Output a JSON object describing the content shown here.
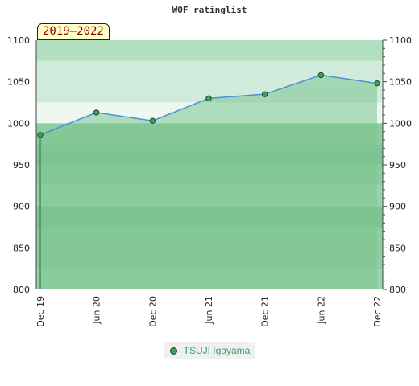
{
  "chart_data": {
    "type": "area",
    "title": "WOF ratinglist",
    "period_label": "2019–2022",
    "x": [
      "Dec 19",
      "Jun 20",
      "Dec 20",
      "Jun 21",
      "Dec 21",
      "Jun 22",
      "Dec 22"
    ],
    "series": [
      {
        "name": "TSUJI Igayama",
        "values": [
          986,
          1013,
          1003,
          1030,
          1035,
          1058,
          1048
        ]
      }
    ],
    "ylim": [
      800,
      1100
    ],
    "y_ticks": [
      800,
      850,
      900,
      950,
      1000,
      1050,
      1100
    ],
    "ylabel_left": "",
    "ylabel_right": "",
    "grid": false,
    "legend_position": "bottom-center",
    "colors": {
      "band_top": "#b3dfc1",
      "band_light": "#d0ebdb",
      "band_lightest": "#eef8f1",
      "band_mid": "#8ecda0",
      "band_dark": "#7dc595",
      "band_medium": "#98d3aa",
      "area_fill": "#7cc492",
      "line": "#4a90d9",
      "marker_fill": "#3aa25a",
      "marker_stroke": "#1c4a2a"
    }
  }
}
